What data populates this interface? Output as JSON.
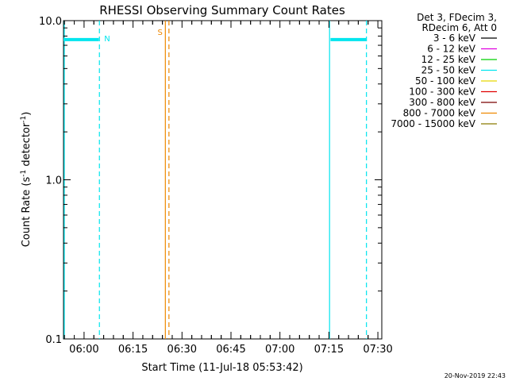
{
  "chart_data": {
    "type": "line",
    "title": "RHESSI Observing Summary Count Rates",
    "xlabel": "Start Time (11-Jul-18 05:53:42)",
    "ylabel_main": "Count Rate (s",
    "ylabel_sup1": "-1",
    "ylabel_mid": " detector",
    "ylabel_sup2": "-1",
    "ylabel_end": ")",
    "yscale": "log",
    "ylim": [
      0.1,
      10.0
    ],
    "xlim_minutes": [
      0,
      97.5
    ],
    "y_ticks": [
      {
        "value": 0.1,
        "label": "0.1"
      },
      {
        "value": 1.0,
        "label": "1.0"
      },
      {
        "value": 10.0,
        "label": "10.0"
      }
    ],
    "x_ticks": [
      {
        "minute": 6.3,
        "label": "06:00"
      },
      {
        "minute": 21.3,
        "label": "06:15"
      },
      {
        "minute": 36.3,
        "label": "06:30"
      },
      {
        "minute": 51.3,
        "label": "06:45"
      },
      {
        "minute": 66.3,
        "label": "07:00"
      },
      {
        "minute": 81.3,
        "label": "07:15"
      },
      {
        "minute": 96.3,
        "label": "07:30"
      }
    ],
    "series": [
      {
        "name": "25 - 50 keV",
        "color": "#00e5ee",
        "segments": [
          {
            "x0": 0,
            "x1": 10.8,
            "y": 7.6
          },
          {
            "x0": 81.8,
            "x1": 92.8,
            "y": 7.6
          }
        ]
      }
    ],
    "markers": [
      {
        "minute": 0.0,
        "style": "solid",
        "color": "#00e5ee"
      },
      {
        "minute": 11.0,
        "style": "dashed",
        "color": "#00e5ee",
        "label": "N"
      },
      {
        "minute": 31.2,
        "style": "solid",
        "color": "#ee8800"
      },
      {
        "minute": 32.3,
        "style": "dashed",
        "color": "#ee8800",
        "label": "S"
      },
      {
        "minute": 81.5,
        "style": "solid",
        "color": "#00e5ee"
      },
      {
        "minute": 92.8,
        "style": "dashed",
        "color": "#00e5ee"
      }
    ],
    "legend_position": "top-right",
    "legend_header": [
      "Det 3, FDecim 3,",
      "RDecim 6, Att 0"
    ],
    "legend": [
      {
        "label": "3 - 6 keV",
        "color": "#000000"
      },
      {
        "label": "6 - 12 keV",
        "color": "#e000e0"
      },
      {
        "label": "12 - 25 keV",
        "color": "#00d000"
      },
      {
        "label": "25 - 50 keV",
        "color": "#00e5ee"
      },
      {
        "label": "50 - 100 keV",
        "color": "#e8d800"
      },
      {
        "label": "100 - 300 keV",
        "color": "#e00000"
      },
      {
        "label": "300 - 800 keV",
        "color": "#7a0000"
      },
      {
        "label": "800 - 7000 keV",
        "color": "#ee8800"
      },
      {
        "label": "7000 - 15000 keV",
        "color": "#8a7a00"
      }
    ]
  },
  "footer": {
    "timestamp": "20-Nov-2019 22:43"
  }
}
